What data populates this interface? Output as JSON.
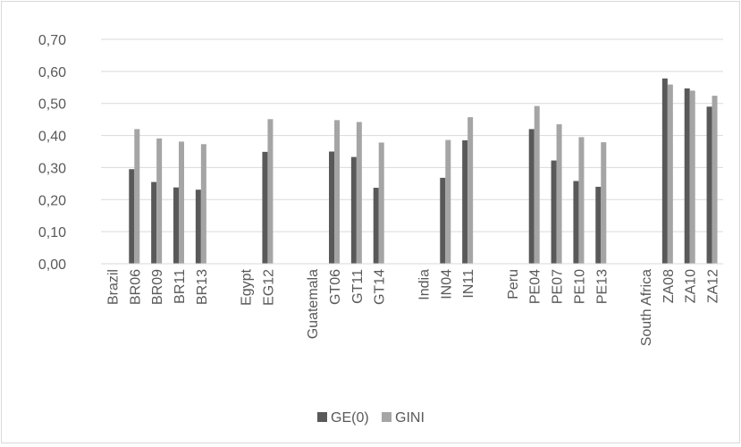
{
  "chart_data": {
    "type": "bar",
    "title": "",
    "xlabel": "",
    "ylabel": "",
    "ylim": [
      0,
      0.7
    ],
    "y_ticks": [
      "0,00",
      "0,10",
      "0,20",
      "0,30",
      "0,40",
      "0,50",
      "0,60",
      "0,70"
    ],
    "grid": true,
    "legend_position": "bottom",
    "categories": [
      "Brazil",
      "BR06",
      "BR09",
      "BR11",
      "BR13",
      "",
      "Egypt",
      "EG12",
      "",
      "Guatemala",
      "GT06",
      "GT11",
      "GT14",
      "",
      "India",
      "IN04",
      "IN11",
      "",
      "Peru",
      "PE04",
      "PE07",
      "PE10",
      "PE13",
      "",
      "South Africa",
      "ZA08",
      "ZA10",
      "ZA12"
    ],
    "series": [
      {
        "name": "GE(0)",
        "color": "#595959",
        "values": [
          null,
          0.295,
          0.255,
          0.238,
          0.231,
          null,
          null,
          0.349,
          null,
          null,
          0.35,
          0.333,
          0.237,
          null,
          null,
          0.268,
          0.385,
          null,
          null,
          0.42,
          0.322,
          0.258,
          0.24,
          null,
          null,
          0.578,
          0.547,
          0.49
        ]
      },
      {
        "name": "GINI",
        "color": "#a5a5a5",
        "values": [
          null,
          0.42,
          0.391,
          0.381,
          0.373,
          null,
          null,
          0.451,
          null,
          null,
          0.448,
          0.442,
          0.378,
          null,
          null,
          0.386,
          0.457,
          null,
          null,
          0.492,
          0.435,
          0.395,
          0.379,
          null,
          null,
          0.559,
          0.54,
          0.524
        ]
      }
    ]
  }
}
